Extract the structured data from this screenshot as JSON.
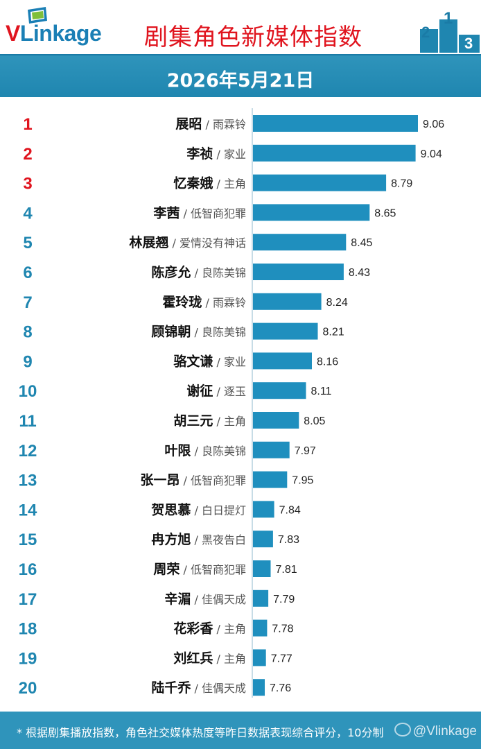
{
  "header": {
    "logo_v": "V",
    "logo_rest": "Linkage",
    "title": "剧集角色新媒体指数",
    "podium_labels": [
      "2",
      "1",
      "3"
    ]
  },
  "date": "2026年5月21日",
  "chart_data": {
    "type": "bar",
    "orientation": "horizontal",
    "title": "剧集角色新媒体指数",
    "subtitle": "2026年5月21日",
    "ranks": [
      "1",
      "2",
      "3",
      "4",
      "5",
      "6",
      "7",
      "8",
      "9",
      "10",
      "11",
      "12",
      "13",
      "14",
      "15",
      "16",
      "17",
      "18",
      "19",
      "20"
    ],
    "categories": [
      "展昭",
      "李祯",
      "忆秦娥",
      "李茜",
      "林展翘",
      "陈彦允",
      "霍玲珑",
      "顾锦朝",
      "骆文谦",
      "谢征",
      "胡三元",
      "叶限",
      "张一昂",
      "贺思慕",
      "冉方旭",
      "周荣",
      "辛湄",
      "花彩香",
      "刘红兵",
      "陆千乔"
    ],
    "dramas": [
      "雨霖铃",
      "家业",
      "主角",
      "低智商犯罪",
      "爱情没有神话",
      "良陈美锦",
      "雨霖铃",
      "良陈美锦",
      "家业",
      "逐玉",
      "主角",
      "良陈美锦",
      "低智商犯罪",
      "白日提灯",
      "黑夜告白",
      "低智商犯罪",
      "佳偶天成",
      "主角",
      "主角",
      "佳偶天成"
    ],
    "values": [
      9.06,
      9.04,
      8.79,
      8.65,
      8.45,
      8.43,
      8.24,
      8.21,
      8.16,
      8.11,
      8.05,
      7.97,
      7.95,
      7.84,
      7.83,
      7.81,
      7.79,
      7.78,
      7.77,
      7.76
    ],
    "value_labels": [
      "9.06",
      "9.04",
      "8.79",
      "8.65",
      "8.45",
      "8.43",
      "8.24",
      "8.21",
      "8.16",
      "8.11",
      "8.05",
      "7.97",
      "7.95",
      "7.84",
      "7.83",
      "7.81",
      "7.79",
      "7.78",
      "7.77",
      "7.76"
    ],
    "top_rank_color": "#e0141e",
    "rank_color": "#1f86b0",
    "bar_color": "#1f8fbe",
    "grid": false,
    "legend": "none"
  },
  "footer": {
    "note": "* 根据剧集播放指数，角色社交媒体热度等昨日数据表现综合评分，10分制",
    "watermark": "@Vlinkage"
  }
}
